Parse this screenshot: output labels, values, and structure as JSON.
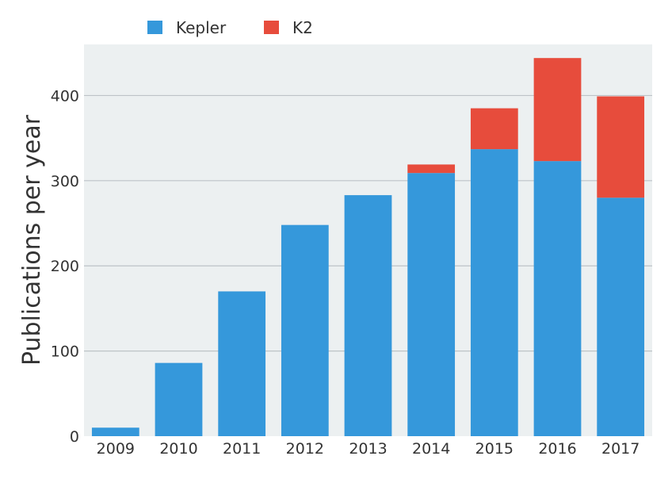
{
  "chart_data": {
    "type": "bar",
    "stacked": true,
    "categories": [
      "2009",
      "2010",
      "2011",
      "2012",
      "2013",
      "2014",
      "2015",
      "2016",
      "2017"
    ],
    "series": [
      {
        "name": "Kepler",
        "color": "#3598db",
        "values": [
          10,
          86,
          170,
          248,
          283,
          309,
          337,
          323,
          280
        ]
      },
      {
        "name": "K2",
        "color": "#e74c3c",
        "values": [
          0,
          0,
          0,
          0,
          0,
          10,
          48,
          121,
          119
        ]
      }
    ],
    "ylabel": "Publications per year",
    "ylim": [
      0,
      460
    ],
    "yticks": [
      0,
      100,
      200,
      300,
      400
    ],
    "grid": true,
    "legend_position": "top-left",
    "background_color": "#ecf0f1",
    "grid_color": "#bdc3c7"
  }
}
